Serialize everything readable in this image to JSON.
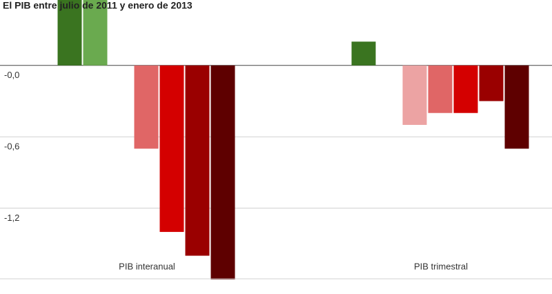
{
  "chart_data": {
    "type": "bar",
    "title": "El PIB entre julio de 2011 y enero de 2013",
    "categories": [
      "PIB interanual",
      "PIB trimestral"
    ],
    "series": [
      {
        "color": "#3a7420",
        "values": [
          0.6,
          0.2
        ]
      },
      {
        "color": "#6aaa4f",
        "values": [
          0.6,
          null
        ]
      },
      {
        "color": "#eca3a3",
        "values": [
          null,
          -0.5
        ]
      },
      {
        "color": "#e06666",
        "values": [
          -0.7,
          -0.4
        ]
      },
      {
        "color": "#d40000",
        "values": [
          -1.4,
          -0.4
        ]
      },
      {
        "color": "#9a0000",
        "values": [
          -1.6,
          -0.3
        ]
      },
      {
        "color": "#5e0000",
        "values": [
          -1.8,
          -0.7
        ]
      }
    ],
    "ylim": [
      -1.8,
      0.55
    ],
    "yticks": [
      {
        "value": 0,
        "label": "-0,0"
      },
      {
        "value": -0.6,
        "label": "-0,6"
      },
      {
        "value": -1.2,
        "label": "-1,2"
      }
    ],
    "grid": true
  }
}
